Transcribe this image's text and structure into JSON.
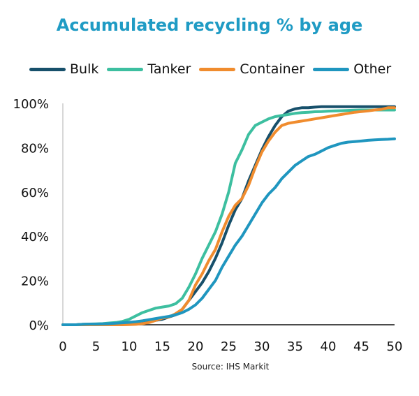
{
  "chart_data": {
    "type": "line",
    "title": "Accumulated recycling % by age",
    "source": "Source: IHS Markit",
    "xlim": [
      0,
      50
    ],
    "ylim": [
      0,
      100
    ],
    "x_ticks": [
      0,
      5,
      10,
      15,
      20,
      25,
      30,
      35,
      40,
      45,
      50
    ],
    "x_tick_labels": [
      "0",
      "5",
      "10",
      "15",
      "20",
      "25",
      "30",
      "35",
      "40",
      "45",
      "50"
    ],
    "y_ticks": [
      0,
      20,
      40,
      60,
      80,
      100
    ],
    "y_tick_labels": [
      "0%",
      "20%",
      "40%",
      "60%",
      "80%",
      "100%"
    ],
    "grid": false,
    "legend_position": "top",
    "x": [
      0,
      1,
      2,
      3,
      4,
      5,
      6,
      7,
      8,
      9,
      10,
      11,
      12,
      13,
      14,
      15,
      16,
      17,
      18,
      19,
      20,
      21,
      22,
      23,
      24,
      25,
      26,
      27,
      28,
      29,
      30,
      31,
      32,
      33,
      34,
      35,
      36,
      37,
      38,
      39,
      40,
      41,
      42,
      43,
      44,
      45,
      46,
      47,
      48,
      49,
      50
    ],
    "series": [
      {
        "name": "Bulk",
        "color": "#17506b",
        "values": [
          0,
          0,
          0,
          0.2,
          0.2,
          0.3,
          0.3,
          0.4,
          0.5,
          0.6,
          0.8,
          1,
          1,
          1.5,
          2,
          2.5,
          3.5,
          4.5,
          7,
          11,
          15,
          19,
          24,
          30,
          37,
          45,
          52,
          57,
          65,
          72,
          79,
          85,
          90,
          94,
          96.5,
          97.5,
          98,
          98,
          98.3,
          98.5,
          98.5,
          98.5,
          98.5,
          98.5,
          98.5,
          98.5,
          98.5,
          98.5,
          98.5,
          98.5,
          98.5
        ]
      },
      {
        "name": "Tanker",
        "color": "#3dbfa0",
        "values": [
          0,
          0,
          0,
          0.2,
          0.3,
          0.4,
          0.5,
          0.8,
          1,
          1.5,
          2.5,
          4,
          5.5,
          6.5,
          7.5,
          8,
          8.5,
          9.5,
          12,
          17,
          23,
          30,
          36,
          42,
          50,
          60,
          73,
          79,
          86,
          90,
          91.5,
          93,
          94,
          94.5,
          95,
          95.5,
          95.8,
          96,
          96.2,
          96.3,
          96.5,
          96.6,
          96.7,
          96.8,
          96.9,
          97,
          97,
          97,
          97,
          97,
          97
        ]
      },
      {
        "name": "Container",
        "color": "#f08c2e",
        "values": [
          0,
          0,
          0,
          0,
          0,
          0,
          0,
          0,
          0,
          0,
          0.1,
          0.2,
          0.5,
          1,
          2,
          3,
          3.5,
          5,
          7,
          11,
          18,
          23,
          29,
          34,
          42,
          49,
          54,
          57,
          63,
          71,
          78,
          83,
          87,
          90,
          91,
          91.5,
          92,
          92.5,
          93,
          93.5,
          94,
          94.5,
          95,
          95.5,
          96,
          96.3,
          96.6,
          97,
          97.3,
          98,
          98
        ]
      },
      {
        "name": "Other",
        "color": "#1f96bf",
        "values": [
          0,
          0,
          0,
          0.2,
          0.3,
          0.3,
          0.4,
          0.5,
          0.7,
          0.9,
          1.1,
          1.4,
          1.8,
          2.3,
          2.8,
          3.3,
          3.8,
          4.5,
          5.5,
          7,
          9,
          12,
          16,
          20,
          26,
          31,
          36,
          40,
          45,
          50,
          55,
          59,
          62,
          66,
          69,
          72,
          74,
          76,
          77,
          78.5,
          80,
          81,
          82,
          82.5,
          82.7,
          83,
          83.3,
          83.5,
          83.7,
          83.8,
          84
        ]
      }
    ]
  }
}
